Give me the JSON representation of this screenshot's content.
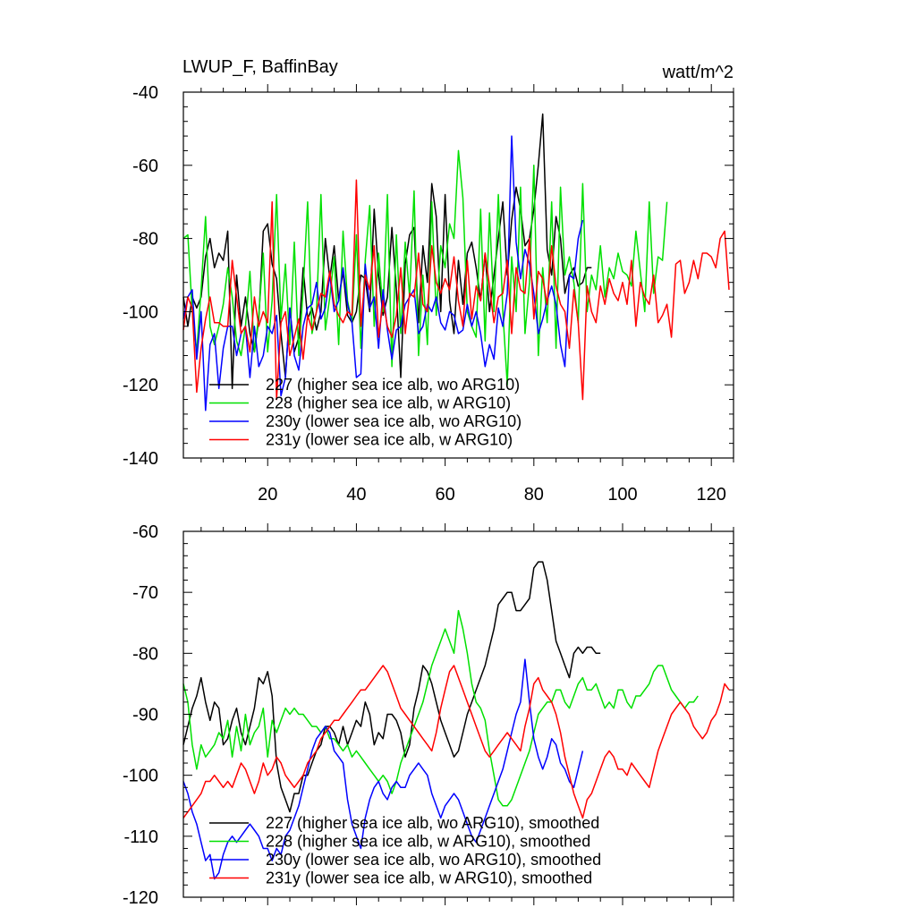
{
  "chart_data": [
    {
      "type": "line",
      "title": "LWUP_F, BaffinBay",
      "units": "watt/m^2",
      "xlim": [
        1,
        125
      ],
      "ylim": [
        -140,
        -40
      ],
      "yticks": [
        -140,
        -120,
        -100,
        -80,
        -60,
        -40
      ],
      "xticks": [
        20,
        40,
        60,
        80,
        100,
        120
      ],
      "xtick_labels": [
        "20",
        "40",
        "60",
        "80",
        "100",
        "120"
      ],
      "ytick_labels": [
        "-140",
        "-120",
        "-100",
        "-80",
        "-60",
        "-40"
      ],
      "legend_position": "bottom-left",
      "series": [
        {
          "name": "227 (higher sea ice alb, wo ARG10)",
          "color": "#000000",
          "x_start": 1,
          "values": [
            -96,
            -104,
            -96,
            -99,
            -96,
            -85,
            -80,
            -88,
            -84,
            -86,
            -78,
            -121,
            -90,
            -104,
            -96,
            -106,
            -111,
            -102,
            -78,
            -76,
            -87,
            -91,
            -106,
            -118,
            -99,
            -111,
            -107,
            -88,
            -102,
            -99,
            -105,
            -100,
            -80,
            -91,
            -82,
            -97,
            -89,
            -101,
            -103,
            -100,
            -90,
            -91,
            -100,
            -72,
            -90,
            -101,
            -96,
            -77,
            -94,
            -118,
            -87,
            -79,
            -77,
            -103,
            -82,
            -92,
            -65,
            -74,
            -100,
            -68,
            -97,
            -106,
            -86,
            -98,
            -84,
            -81,
            -88,
            -97,
            -84,
            -100,
            -90,
            -80,
            -70,
            -90,
            -75,
            -66,
            -72,
            -82,
            -80,
            -72,
            -60,
            -46,
            -83,
            -90,
            -74,
            -80,
            -95,
            -90,
            -88,
            -93,
            -92,
            -88,
            -88
          ]
        },
        {
          "name": "228 (higher sea ice alb, w ARG10)",
          "color": "#00e000",
          "x_start": 1,
          "values": [
            -80,
            -79,
            -100,
            -111,
            -94,
            -74,
            -104,
            -109,
            -104,
            -98,
            -88,
            -96,
            -108,
            -112,
            -104,
            -89,
            -111,
            -101,
            -84,
            -111,
            -97,
            -68,
            -102,
            -87,
            -109,
            -81,
            -112,
            -94,
            -70,
            -106,
            -100,
            -68,
            -105,
            -96,
            -85,
            -109,
            -78,
            -97,
            -103,
            -79,
            -110,
            -86,
            -71,
            -104,
            -84,
            -100,
            -68,
            -115,
            -79,
            -106,
            -81,
            -96,
            -67,
            -112,
            -90,
            -109,
            -70,
            -101,
            -82,
            -88,
            -76,
            -80,
            -56,
            -69,
            -100,
            -104,
            -107,
            -72,
            -108,
            -73,
            -100,
            -68,
            -100,
            -120,
            -85,
            -100,
            -66,
            -106,
            -92,
            -60,
            -112,
            -88,
            -103,
            -70,
            -110,
            -66,
            -90,
            -85,
            -92,
            -103,
            -65,
            -100,
            -90,
            -94,
            -82,
            -96,
            -88,
            -91,
            -84,
            -89,
            -90,
            -93,
            -78,
            -89,
            -100,
            -70,
            -95,
            -85,
            -86,
            -70
          ]
        },
        {
          "name": "230y (lower sea ice alb, wo ARG10)",
          "color": "#0000ff",
          "x_start": 1,
          "values": [
            -102,
            -96,
            -94,
            -113,
            -100,
            -127,
            -109,
            -106,
            -121,
            -110,
            -104,
            -104,
            -112,
            -106,
            -104,
            -118,
            -104,
            -115,
            -112,
            -104,
            -106,
            -101,
            -123,
            -118,
            -99,
            -112,
            -116,
            -104,
            -99,
            -98,
            -92,
            -102,
            -99,
            -90,
            -100,
            -97,
            -88,
            -98,
            -103,
            -118,
            -117,
            -87,
            -99,
            -96,
            -110,
            -94,
            -105,
            -113,
            -105,
            -104,
            -98,
            -96,
            -94,
            -106,
            -104,
            -98,
            -100,
            -96,
            -103,
            -105,
            -100,
            -101,
            -106,
            -105,
            -98,
            -104,
            -100,
            -106,
            -115,
            -109,
            -113,
            -99,
            -104,
            -95,
            -52,
            -81,
            -91,
            -83,
            -87,
            -95,
            -106,
            -102,
            -97,
            -93,
            -98,
            -109,
            -115,
            -90,
            -91,
            -80,
            -75
          ]
        },
        {
          "name": "231y (lower sea ice alb, w ARG10)",
          "color": "#ff0000",
          "x_start": 1,
          "values": [
            -105,
            -96,
            -99,
            -122,
            -110,
            -102,
            -96,
            -103,
            -103,
            -104,
            -104,
            -86,
            -96,
            -106,
            -104,
            -111,
            -96,
            -104,
            -100,
            -103,
            -70,
            -124,
            -103,
            -100,
            -112,
            -107,
            -102,
            -113,
            -101,
            -105,
            -100,
            -95,
            -96,
            -89,
            -98,
            -101,
            -103,
            -100,
            -101,
            -64,
            -104,
            -90,
            -94,
            -82,
            -107,
            -97,
            -104,
            -107,
            -101,
            -88,
            -106,
            -95,
            -96,
            -84,
            -98,
            -100,
            -82,
            -92,
            -95,
            -91,
            -94,
            -85,
            -97,
            -104,
            -86,
            -102,
            -93,
            -97,
            -84,
            -93,
            -103,
            -96,
            -95,
            -86,
            -106,
            -88,
            -94,
            -95,
            -80,
            -102,
            -89,
            -91,
            -98,
            -82,
            -93,
            -98,
            -100,
            -110,
            -94,
            -103,
            -124,
            -93,
            -100,
            -103,
            -93,
            -98,
            -91,
            -95,
            -97,
            -92,
            -98,
            -86,
            -104,
            -92,
            -96,
            -98,
            -90,
            -103,
            -101,
            -98,
            -107,
            -87,
            -86,
            -95,
            -92,
            -86,
            -91,
            -84,
            -84,
            -85,
            -88,
            -80,
            -78,
            -94
          ]
        }
      ]
    },
    {
      "type": "line",
      "title": "",
      "xlim": [
        1,
        125
      ],
      "ylim": [
        -120,
        -60
      ],
      "yticks": [
        -120,
        -110,
        -100,
        -90,
        -80,
        -70,
        -60
      ],
      "xticks": [
        20,
        40,
        60,
        80,
        100,
        120
      ],
      "ytick_labels": [
        "-120",
        "-110",
        "-100",
        "-90",
        "-80",
        "-70",
        "-60"
      ],
      "legend_position": "bottom-left",
      "series": [
        {
          "name": "227 (higher sea ice alb, wo ARG10), smoothed",
          "color": "#000000",
          "x_start": 1,
          "values": [
            -95,
            -92,
            -89,
            -87,
            -84,
            -88,
            -91,
            -88,
            -89,
            -95,
            -94,
            -91,
            -89,
            -93,
            -95,
            -92,
            -89,
            -84,
            -85,
            -83,
            -87,
            -98,
            -102,
            -104,
            -106,
            -103,
            -103,
            -100,
            -100,
            -98,
            -96,
            -95,
            -92,
            -92,
            -93,
            -95,
            -92,
            -95,
            -93,
            -91,
            -92,
            -88,
            -90,
            -95,
            -93,
            -94,
            -90,
            -90,
            -91,
            -93,
            -97,
            -95,
            -89,
            -86,
            -82,
            -83,
            -85,
            -88,
            -91,
            -93,
            -95,
            -97,
            -96,
            -93,
            -90,
            -88,
            -86,
            -84,
            -82,
            -79,
            -76,
            -72,
            -71,
            -70,
            -70,
            -73,
            -73,
            -72,
            -71,
            -66,
            -65,
            -65,
            -68,
            -73,
            -78,
            -80,
            -82,
            -84,
            -80,
            -79,
            -80,
            -79,
            -79,
            -80,
            -80
          ]
        },
        {
          "name": "228 (higher sea ice alb, w ARG10), smoothed",
          "color": "#00e000",
          "x_start": 1,
          "values": [
            -85,
            -88,
            -95,
            -99,
            -95,
            -97,
            -96,
            -95,
            -93,
            -94,
            -91,
            -97,
            -92,
            -96,
            -90,
            -95,
            -93,
            -92,
            -89,
            -97,
            -91,
            -93,
            -91,
            -89,
            -90,
            -89,
            -90,
            -90,
            -91,
            -92,
            -92,
            -93,
            -92,
            -94,
            -94,
            -95,
            -96,
            -95,
            -97,
            -96,
            -97,
            -98,
            -99,
            -100,
            -101,
            -100,
            -101,
            -103,
            -101,
            -98,
            -96,
            -94,
            -92,
            -90,
            -88,
            -85,
            -82,
            -80,
            -78,
            -76,
            -78,
            -80,
            -73,
            -76,
            -80,
            -85,
            -88,
            -89,
            -91,
            -96,
            -100,
            -104,
            -105,
            -105,
            -104,
            -102,
            -100,
            -98,
            -96,
            -93,
            -90,
            -89,
            -88,
            -88,
            -86,
            -86,
            -88,
            -89,
            -87,
            -85,
            -84,
            -86,
            -86,
            -85,
            -87,
            -89,
            -88,
            -89,
            -86,
            -86,
            -88,
            -89,
            -87,
            -87,
            -86,
            -85,
            -83,
            -82,
            -82,
            -84,
            -86,
            -87,
            -88,
            -89,
            -88,
            -88,
            -87
          ]
        },
        {
          "name": "230y (lower sea ice alb, wo ARG10), smoothed",
          "color": "#0000ff",
          "x_start": 1,
          "values": [
            -101,
            -103,
            -106,
            -108,
            -111,
            -114,
            -113,
            -117,
            -116,
            -113,
            -111,
            -110,
            -111,
            -110,
            -109,
            -108,
            -109,
            -110,
            -112,
            -112,
            -114,
            -112,
            -113,
            -110,
            -109,
            -107,
            -105,
            -102,
            -99,
            -96,
            -94,
            -93,
            -92,
            -93,
            -96,
            -97,
            -98,
            -104,
            -108,
            -110,
            -112,
            -107,
            -104,
            -102,
            -101,
            -103,
            -104,
            -102,
            -101,
            -102,
            -102,
            -100,
            -99,
            -98,
            -99,
            -100,
            -103,
            -105,
            -107,
            -105,
            -104,
            -103,
            -104,
            -106,
            -108,
            -110,
            -111,
            -109,
            -107,
            -105,
            -103,
            -101,
            -99,
            -96,
            -93,
            -90,
            -88,
            -81,
            -88,
            -94,
            -97,
            -99,
            -97,
            -94,
            -95,
            -98,
            -99,
            -101,
            -102,
            -99,
            -96
          ]
        },
        {
          "name": "231y (lower sea ice alb, w ARG10), smoothed",
          "color": "#ff0000",
          "x_start": 1,
          "values": [
            -107,
            -106,
            -105,
            -104,
            -103,
            -101,
            -101,
            -100,
            -101,
            -102,
            -101,
            -102,
            -100,
            -98,
            -99,
            -101,
            -103,
            -101,
            -98,
            -100,
            -99,
            -97,
            -98,
            -100,
            -101,
            -102,
            -101,
            -100,
            -98,
            -97,
            -96,
            -94,
            -93,
            -92,
            -91,
            -91,
            -90,
            -89,
            -88,
            -87,
            -86,
            -86,
            -85,
            -84,
            -83,
            -82,
            -83,
            -85,
            -87,
            -89,
            -90,
            -91,
            -92,
            -93,
            -94,
            -95,
            -96,
            -93,
            -89,
            -86,
            -83,
            -82,
            -84,
            -86,
            -88,
            -90,
            -92,
            -94,
            -96,
            -97,
            -96,
            -95,
            -94,
            -93,
            -94,
            -95,
            -96,
            -92,
            -89,
            -85,
            -84,
            -86,
            -87,
            -88,
            -90,
            -93,
            -97,
            -100,
            -103,
            -105,
            -107,
            -104,
            -103,
            -101,
            -99,
            -97,
            -96,
            -97,
            -99,
            -99,
            -100,
            -98,
            -99,
            -100,
            -101,
            -102,
            -99,
            -96,
            -94,
            -92,
            -90,
            -89,
            -88,
            -89,
            -90,
            -92,
            -93,
            -94,
            -93,
            -91,
            -90,
            -88,
            -85,
            -86
          ]
        }
      ]
    }
  ]
}
